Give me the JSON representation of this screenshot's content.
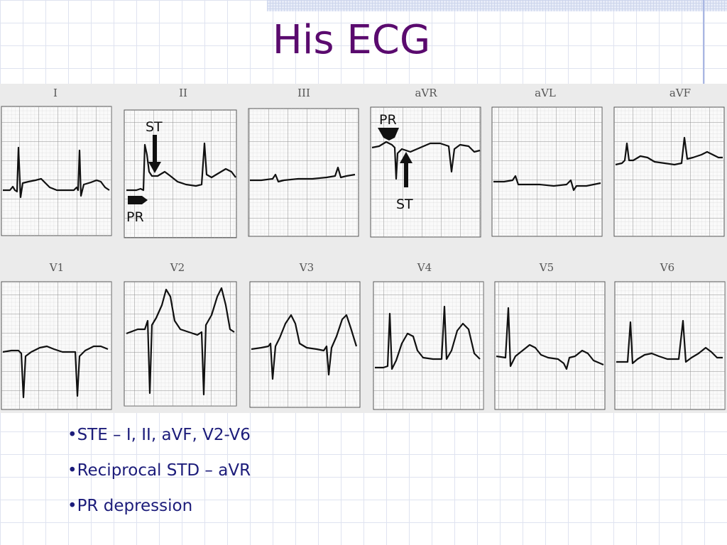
{
  "slide": {
    "title": "His ECG",
    "bullets": [
      "•STE – I, II, aVF, V2-V6",
      "•Reciprocal STD – aVR",
      "•PR depression"
    ]
  },
  "ecg": {
    "leads_row1": [
      "I",
      "II",
      "III",
      "aVR",
      "aVL",
      "aVF"
    ],
    "leads_row2": [
      "V1",
      "V2",
      "V3",
      "V4",
      "V5",
      "V6"
    ],
    "annotations": {
      "lead_ii_st": "ST",
      "lead_ii_pr": "PR",
      "lead_avr_pr": "PR",
      "lead_avr_st": "ST"
    }
  }
}
